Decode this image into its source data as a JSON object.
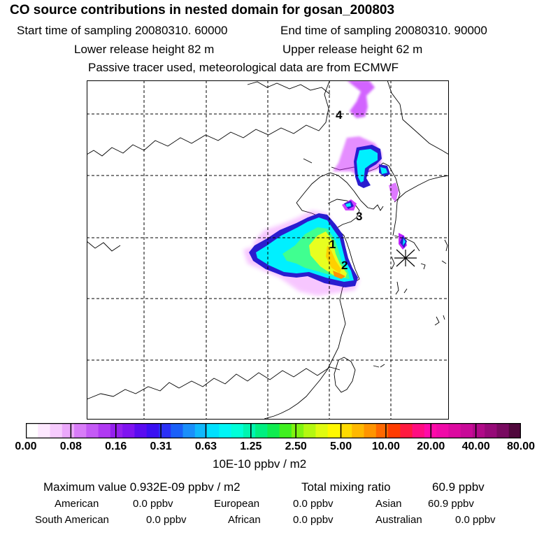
{
  "header": {
    "title": "CO  source contributions in nested domain for gosan_200803",
    "start_label": "Start time of sampling 20080310. 60000",
    "end_label": "End time of sampling 20080310. 90000",
    "lower_label": "Lower release height   82 m",
    "upper_label": "Upper release height   62 m",
    "tracer_note": "Passive tracer used, meteorological data are from ECMWF"
  },
  "map": {
    "markers": [
      "1",
      "2",
      "3",
      "4"
    ],
    "receptor": "gosan",
    "colors": {
      "low": "#e020ff",
      "cyan": "#00f0ff",
      "green": "#30ff90",
      "yellow": "#e8ff20",
      "border": "#2a1ccf"
    }
  },
  "colorbar": {
    "ticks": [
      "0.00",
      "0.08",
      "0.16",
      "0.31",
      "0.63",
      "1.25",
      "2.50",
      "5.00",
      "10.00",
      "20.00",
      "40.00",
      "80.00"
    ],
    "colors": [
      "#ffffff",
      "#fde8ff",
      "#f6cbfd",
      "#eba8fb",
      "#d87cf8",
      "#c45af5",
      "#b03af2",
      "#9520ef",
      "#7f14f0",
      "#5a0cf0",
      "#3a10f2",
      "#2a30f5",
      "#1a60f8",
      "#1a8ffa",
      "#10b8fc",
      "#00e0ff",
      "#00f5f5",
      "#00ffd8",
      "#00f5b0",
      "#00ef80",
      "#10ec50",
      "#40f020",
      "#80f410",
      "#b4f810",
      "#e0fb10",
      "#fff800",
      "#ffdb00",
      "#ffb800",
      "#ff9400",
      "#ff6800",
      "#ff3c00",
      "#ff1a40",
      "#ff0d80",
      "#ff0aa8",
      "#f00aa8",
      "#dc0aa0",
      "#c80a98",
      "#b00a88",
      "#960a78",
      "#780a60",
      "#50083c"
    ],
    "unit": "10E-10 ppbv / m2"
  },
  "stats": {
    "max_label": "Maximum value  0.932E-09 ppbv / m2",
    "total_label": "Total mixing ratio",
    "total_value": "60.9 ppbv",
    "regions": [
      {
        "name": "American",
        "value": "0.0 ppbv"
      },
      {
        "name": "European",
        "value": "0.0 ppbv"
      },
      {
        "name": "Asian",
        "value": "60.9 ppbv"
      },
      {
        "name": "South American",
        "value": "0.0 ppbv"
      },
      {
        "name": "African",
        "value": "0.0 ppbv"
      },
      {
        "name": "Australian",
        "value": "0.0 ppbv"
      }
    ]
  }
}
